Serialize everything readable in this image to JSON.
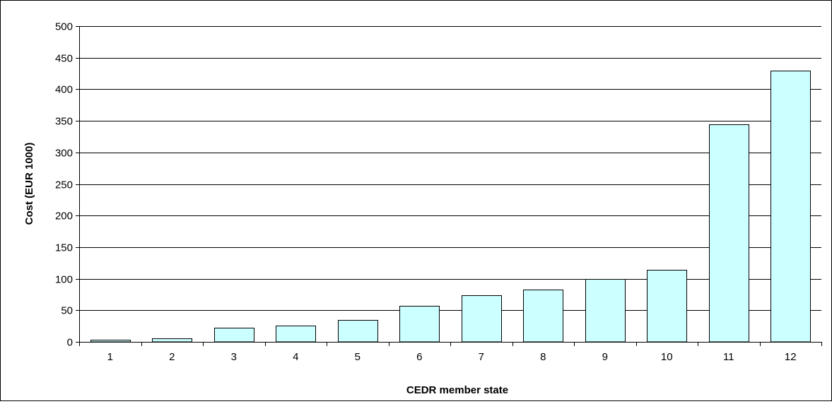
{
  "chart_data": {
    "type": "bar",
    "title": "",
    "xlabel": "CEDR member state",
    "ylabel": "Cost (EUR 1000)",
    "categories": [
      "1",
      "2",
      "3",
      "4",
      "5",
      "6",
      "7",
      "8",
      "9",
      "10",
      "11",
      "12"
    ],
    "values": [
      3,
      6,
      22,
      26,
      35,
      57,
      74,
      83,
      100,
      114,
      345,
      430
    ],
    "ylim": [
      0,
      500
    ],
    "yticks": [
      "0",
      "50",
      "100",
      "150",
      "200",
      "250",
      "300",
      "350",
      "400",
      "450",
      "500"
    ],
    "grid": true,
    "legend": "none",
    "colors": {
      "bar_fill": "#CCFFFF",
      "bar_stroke": "#000000",
      "gridline": "#000000"
    }
  }
}
